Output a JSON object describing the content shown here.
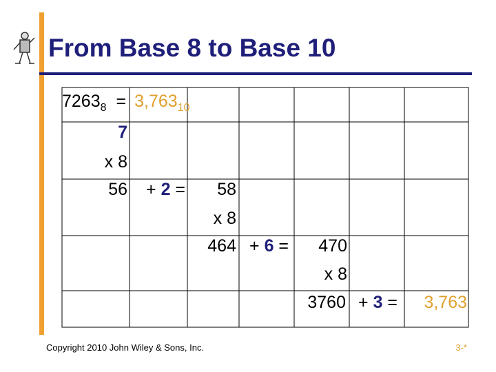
{
  "title": "From Base 8 to Base 10",
  "equation": {
    "octal": "7263",
    "octal_base": "8",
    "equals": "=",
    "decimal": "3,763",
    "decimal_base": "10"
  },
  "start_digit": "7",
  "rows": [
    {
      "multiplier": "x 8",
      "product": "56",
      "plus": "+",
      "digit": "2",
      "equals": "=",
      "result": "58"
    },
    {
      "multiplier": "x 8",
      "product": "464",
      "plus": "+",
      "digit": "6",
      "equals": "=",
      "result": "470"
    },
    {
      "multiplier": "x 8",
      "product": "3760",
      "plus": "+",
      "digit": "3",
      "equals": "=",
      "result": "3,763"
    }
  ],
  "footer": {
    "copyright": "Copyright 2010 John Wiley & Sons, Inc.",
    "page": "3-*"
  }
}
